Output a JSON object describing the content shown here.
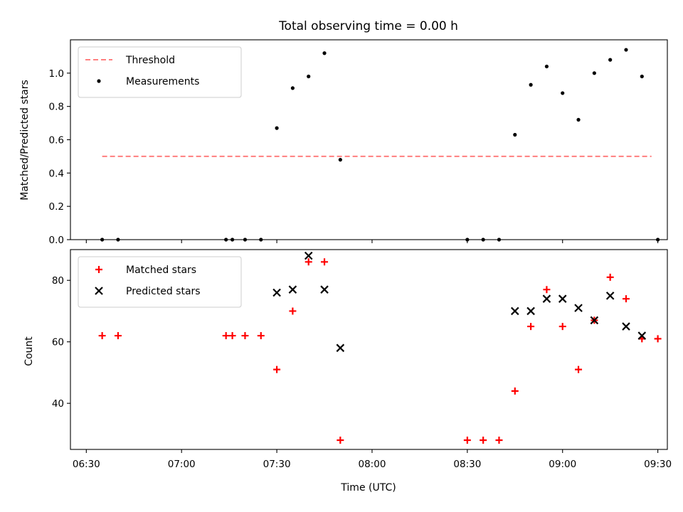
{
  "chart_data": [
    {
      "type": "scatter",
      "title": "Total observing time = 0.00 h",
      "xlabel": "",
      "ylabel": "Matched/Predicted stars",
      "xlim": [
        "06:25",
        "09:33"
      ],
      "ylim": [
        0,
        1.2
      ],
      "yticks": [
        0.0,
        0.2,
        0.4,
        0.6,
        0.8,
        1.0
      ],
      "xticks": [
        "06:30",
        "07:00",
        "07:30",
        "08:00",
        "08:30",
        "09:00",
        "09:30"
      ],
      "show_xtick_labels": false,
      "grid": false,
      "legend_position": "upper-left",
      "threshold": {
        "name": "Threshold",
        "value": 0.5,
        "x_range": [
          "06:35",
          "09:28"
        ],
        "color": "#ff7f7f"
      },
      "series": [
        {
          "name": "Measurements",
          "marker": "dot",
          "color": "#000000",
          "points": [
            {
              "x": "06:35",
              "y": 0.0
            },
            {
              "x": "06:40",
              "y": 0.0
            },
            {
              "x": "07:14",
              "y": 0.0
            },
            {
              "x": "07:16",
              "y": 0.0
            },
            {
              "x": "07:20",
              "y": 0.0
            },
            {
              "x": "07:25",
              "y": 0.0
            },
            {
              "x": "07:30",
              "y": 0.67
            },
            {
              "x": "07:35",
              "y": 0.91
            },
            {
              "x": "07:40",
              "y": 0.98
            },
            {
              "x": "07:45",
              "y": 1.12
            },
            {
              "x": "07:50",
              "y": 0.48
            },
            {
              "x": "08:30",
              "y": 0.0
            },
            {
              "x": "08:35",
              "y": 0.0
            },
            {
              "x": "08:40",
              "y": 0.0
            },
            {
              "x": "08:45",
              "y": 0.63
            },
            {
              "x": "08:50",
              "y": 0.93
            },
            {
              "x": "08:55",
              "y": 1.04
            },
            {
              "x": "09:00",
              "y": 0.88
            },
            {
              "x": "09:05",
              "y": 0.72
            },
            {
              "x": "09:10",
              "y": 1.0
            },
            {
              "x": "09:15",
              "y": 1.08
            },
            {
              "x": "09:20",
              "y": 1.14
            },
            {
              "x": "09:25",
              "y": 0.98
            },
            {
              "x": "09:30",
              "y": 0.0
            }
          ]
        }
      ]
    },
    {
      "type": "scatter",
      "title": "",
      "xlabel": "Time (UTC)",
      "ylabel": "Count",
      "xlim": [
        "06:25",
        "09:33"
      ],
      "ylim": [
        25,
        90
      ],
      "yticks": [
        40,
        60,
        80
      ],
      "xticks": [
        "06:30",
        "07:00",
        "07:30",
        "08:00",
        "08:30",
        "09:00",
        "09:30"
      ],
      "grid": false,
      "legend_position": "upper-left",
      "series": [
        {
          "name": "Matched stars",
          "marker": "plus",
          "color": "#ff0000",
          "points": [
            {
              "x": "06:35",
              "y": 62
            },
            {
              "x": "06:40",
              "y": 62
            },
            {
              "x": "07:14",
              "y": 62
            },
            {
              "x": "07:16",
              "y": 62
            },
            {
              "x": "07:20",
              "y": 62
            },
            {
              "x": "07:25",
              "y": 62
            },
            {
              "x": "07:30",
              "y": 51
            },
            {
              "x": "07:35",
              "y": 70
            },
            {
              "x": "07:40",
              "y": 86
            },
            {
              "x": "07:45",
              "y": 86
            },
            {
              "x": "07:50",
              "y": 28
            },
            {
              "x": "08:30",
              "y": 28
            },
            {
              "x": "08:35",
              "y": 28
            },
            {
              "x": "08:40",
              "y": 28
            },
            {
              "x": "08:45",
              "y": 44
            },
            {
              "x": "08:50",
              "y": 65
            },
            {
              "x": "08:55",
              "y": 77
            },
            {
              "x": "09:00",
              "y": 65
            },
            {
              "x": "09:05",
              "y": 51
            },
            {
              "x": "09:10",
              "y": 67
            },
            {
              "x": "09:15",
              "y": 81
            },
            {
              "x": "09:20",
              "y": 74
            },
            {
              "x": "09:25",
              "y": 61
            },
            {
              "x": "09:30",
              "y": 61
            }
          ]
        },
        {
          "name": "Predicted stars",
          "marker": "x",
          "color": "#000000",
          "points": [
            {
              "x": "07:30",
              "y": 76
            },
            {
              "x": "07:35",
              "y": 77
            },
            {
              "x": "07:40",
              "y": 88
            },
            {
              "x": "07:45",
              "y": 77
            },
            {
              "x": "07:50",
              "y": 58
            },
            {
              "x": "08:45",
              "y": 70
            },
            {
              "x": "08:50",
              "y": 70
            },
            {
              "x": "08:55",
              "y": 74
            },
            {
              "x": "09:00",
              "y": 74
            },
            {
              "x": "09:05",
              "y": 71
            },
            {
              "x": "09:10",
              "y": 67
            },
            {
              "x": "09:15",
              "y": 75
            },
            {
              "x": "09:20",
              "y": 65
            },
            {
              "x": "09:25",
              "y": 62
            }
          ]
        }
      ]
    }
  ]
}
